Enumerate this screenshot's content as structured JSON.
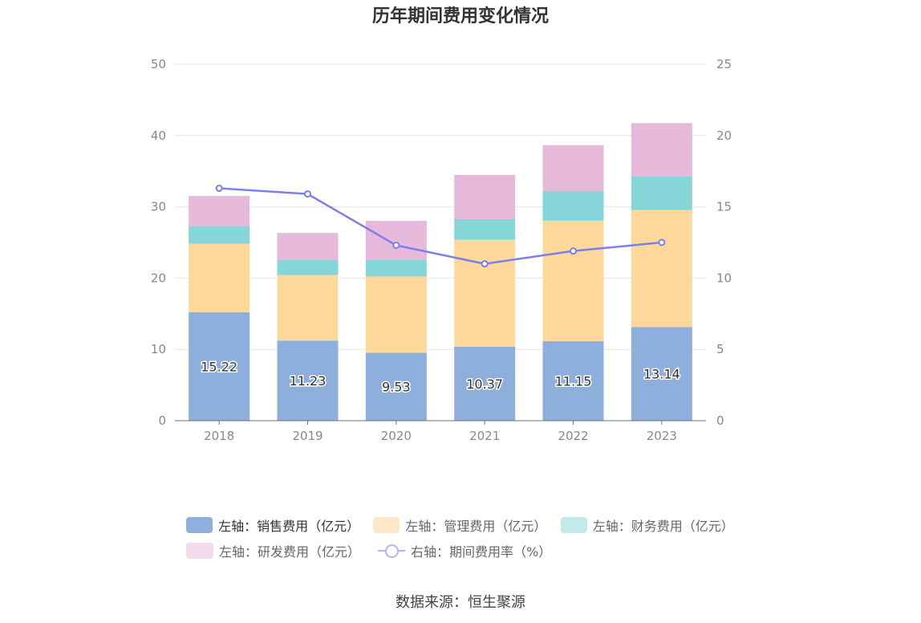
{
  "title": "历年期间费用变化情况",
  "source": "数据来源：恒生聚源",
  "colors": {
    "sales": "#8eaedb",
    "admin": "#fdd89a",
    "finance": "#86d6d9",
    "rnd": "#e6b8d9",
    "rate": "#7b7fee"
  },
  "legend": [
    {
      "label": "左轴：销售费用（亿元）",
      "color": "#8eaedb",
      "kind": "bar"
    },
    {
      "label": "左轴：管理费用（亿元）",
      "color": "#fde7c7",
      "kind": "bar"
    },
    {
      "label": "左轴：财务费用（亿元）",
      "color": "#c2eaeb",
      "kind": "bar"
    },
    {
      "label": "左轴：研发费用（亿元）",
      "color": "#f3dbed",
      "kind": "bar"
    },
    {
      "label": "右轴：期间费用率（%）",
      "color": "#b3b5f5",
      "kind": "line"
    }
  ],
  "chart_data": {
    "type": "bar",
    "stacked": true,
    "categories": [
      "2018",
      "2019",
      "2020",
      "2021",
      "2022",
      "2023"
    ],
    "series": [
      {
        "name": "左轴：销售费用（亿元）",
        "axis": "left",
        "values": [
          15.22,
          11.23,
          9.53,
          10.37,
          11.15,
          13.14
        ],
        "show_labels": true
      },
      {
        "name": "左轴：管理费用（亿元）",
        "axis": "left",
        "values": [
          9.6,
          9.2,
          10.7,
          15.0,
          16.9,
          16.4
        ]
      },
      {
        "name": "左轴：财务费用（亿元）",
        "axis": "left",
        "values": [
          2.5,
          2.1,
          2.3,
          2.9,
          4.1,
          4.7
        ]
      },
      {
        "name": "左轴：研发费用（亿元）",
        "axis": "left",
        "values": [
          4.2,
          3.8,
          5.5,
          6.2,
          6.5,
          7.5
        ]
      },
      {
        "name": "右轴：期间费用率（%）",
        "axis": "right",
        "type": "line",
        "values": [
          16.3,
          15.9,
          12.3,
          11.0,
          11.9,
          12.5
        ]
      }
    ],
    "y_left": {
      "min": 0,
      "max": 50,
      "ticks": [
        "0",
        "10",
        "20",
        "30",
        "40",
        "50"
      ]
    },
    "y_right": {
      "min": 0,
      "max": 25,
      "ticks": [
        "0",
        "5",
        "10",
        "15",
        "20",
        "25"
      ]
    },
    "grid": true,
    "legend_position": "bottom"
  }
}
